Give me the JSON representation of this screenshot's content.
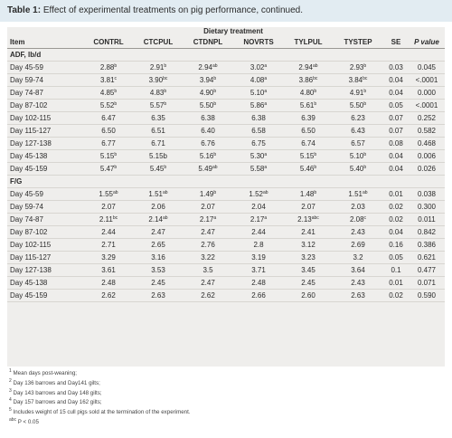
{
  "title": {
    "bold": "Table 1:",
    "rest": " Effect of experimental treatments on pig performance, continued."
  },
  "header": {
    "group": "Dietary treatment",
    "item": "Item",
    "columns": [
      "CONTRL",
      "CTCPUL",
      "CTDNPL",
      "NOVRTS",
      "TYLPUL",
      "TYSTEP",
      "SE",
      "P value"
    ]
  },
  "sections": [
    {
      "label": "ADF, lb/d",
      "rows": [
        {
          "label": "Day 45-59",
          "cells": [
            [
              "2.88",
              "b"
            ],
            [
              "2.91",
              "b"
            ],
            [
              "2.94",
              "ab"
            ],
            [
              "3.02",
              "a"
            ],
            [
              "2.94",
              "ab"
            ],
            [
              "2.93",
              "b"
            ],
            [
              "0.03",
              ""
            ],
            [
              "0.045",
              ""
            ]
          ]
        },
        {
          "label": "Day 59-74",
          "cells": [
            [
              "3.81",
              "c"
            ],
            [
              "3.90",
              "bc"
            ],
            [
              "3.94",
              "b"
            ],
            [
              "4.08",
              "a"
            ],
            [
              "3.86",
              "bc"
            ],
            [
              "3.84",
              "bc"
            ],
            [
              "0.04",
              ""
            ],
            [
              "<.0001",
              ""
            ]
          ]
        },
        {
          "label": "Day 74-87",
          "cells": [
            [
              "4.85",
              "b"
            ],
            [
              "4.83",
              "b"
            ],
            [
              "4.90",
              "b"
            ],
            [
              "5.10",
              "a"
            ],
            [
              "4.80",
              "b"
            ],
            [
              "4.91",
              "b"
            ],
            [
              "0.04",
              ""
            ],
            [
              "0.000",
              ""
            ]
          ]
        },
        {
          "label": "Day 87-102",
          "cells": [
            [
              "5.52",
              "b"
            ],
            [
              "5.57",
              "b"
            ],
            [
              "5.50",
              "b"
            ],
            [
              "5.86",
              "a"
            ],
            [
              "5.61",
              "b"
            ],
            [
              "5.50",
              "b"
            ],
            [
              "0.05",
              ""
            ],
            [
              "<.0001",
              ""
            ]
          ]
        },
        {
          "label": "Day 102-115",
          "cells": [
            [
              "6.47",
              ""
            ],
            [
              "6.35",
              ""
            ],
            [
              "6.38",
              ""
            ],
            [
              "6.38",
              ""
            ],
            [
              "6.39",
              ""
            ],
            [
              "6.23",
              ""
            ],
            [
              "0.07",
              ""
            ],
            [
              "0.252",
              ""
            ]
          ]
        },
        {
          "label": "Day 115-127",
          "cells": [
            [
              "6.50",
              ""
            ],
            [
              "6.51",
              ""
            ],
            [
              "6.40",
              ""
            ],
            [
              "6.58",
              ""
            ],
            [
              "6.50",
              ""
            ],
            [
              "6.43",
              ""
            ],
            [
              "0.07",
              ""
            ],
            [
              "0.582",
              ""
            ]
          ]
        },
        {
          "label": "Day 127-138",
          "cells": [
            [
              "6.77",
              ""
            ],
            [
              "6.71",
              ""
            ],
            [
              "6.76",
              ""
            ],
            [
              "6.75",
              ""
            ],
            [
              "6.74",
              ""
            ],
            [
              "6.57",
              ""
            ],
            [
              "0.08",
              ""
            ],
            [
              "0.468",
              ""
            ]
          ]
        },
        {
          "label": "Day 45-138",
          "cells": [
            [
              "5.15",
              "b"
            ],
            [
              "5.15b",
              ""
            ],
            [
              "5.16",
              "b"
            ],
            [
              "5.30",
              "a"
            ],
            [
              "5.15",
              "b"
            ],
            [
              "5.10",
              "b"
            ],
            [
              "0.04",
              ""
            ],
            [
              "0.006",
              ""
            ]
          ]
        },
        {
          "label": "Day 45-159",
          "cells": [
            [
              "5.47",
              "b"
            ],
            [
              "5.45",
              "b"
            ],
            [
              "5.49",
              "ab"
            ],
            [
              "5.58",
              "a"
            ],
            [
              "5.46",
              "b"
            ],
            [
              "5.40",
              "b"
            ],
            [
              "0.04",
              ""
            ],
            [
              "0.026",
              ""
            ]
          ]
        }
      ]
    },
    {
      "label": "F/G",
      "rows": [
        {
          "label": "Day 45-59",
          "cells": [
            [
              "1.55",
              "ab"
            ],
            [
              "1.51",
              "ab"
            ],
            [
              "1.49",
              "b"
            ],
            [
              "1.52",
              "ab"
            ],
            [
              "1.48",
              "b"
            ],
            [
              "1.51",
              "ab"
            ],
            [
              "0.01",
              ""
            ],
            [
              "0.038",
              ""
            ]
          ]
        },
        {
          "label": "Day 59-74",
          "cells": [
            [
              "2.07",
              ""
            ],
            [
              "2.06",
              ""
            ],
            [
              "2.07",
              ""
            ],
            [
              "2.04",
              ""
            ],
            [
              "2.07",
              ""
            ],
            [
              "2.03",
              ""
            ],
            [
              "0.02",
              ""
            ],
            [
              "0.300",
              ""
            ]
          ]
        },
        {
          "label": "Day 74-87",
          "cells": [
            [
              "2.11",
              "bc"
            ],
            [
              "2.14",
              "ab"
            ],
            [
              "2.17",
              "a"
            ],
            [
              "2.17",
              "a"
            ],
            [
              "2.13",
              "abc"
            ],
            [
              "2.08",
              "c"
            ],
            [
              "0.02",
              ""
            ],
            [
              "0.011",
              ""
            ]
          ]
        },
        {
          "label": "Day 87-102",
          "cells": [
            [
              "2.44",
              ""
            ],
            [
              "2.47",
              ""
            ],
            [
              "2.47",
              ""
            ],
            [
              "2.44",
              ""
            ],
            [
              "2.41",
              ""
            ],
            [
              "2.43",
              ""
            ],
            [
              "0.04",
              ""
            ],
            [
              "0.842",
              ""
            ]
          ]
        },
        {
          "label": "Day 102-115",
          "cells": [
            [
              "2.71",
              ""
            ],
            [
              "2.65",
              ""
            ],
            [
              "2.76",
              ""
            ],
            [
              "2.8",
              ""
            ],
            [
              "3.12",
              ""
            ],
            [
              "2.69",
              ""
            ],
            [
              "0.16",
              ""
            ],
            [
              "0.386",
              ""
            ]
          ]
        },
        {
          "label": "Day 115-127",
          "cells": [
            [
              "3.29",
              ""
            ],
            [
              "3.16",
              ""
            ],
            [
              "3.22",
              ""
            ],
            [
              "3.19",
              ""
            ],
            [
              "3.23",
              ""
            ],
            [
              "3.2",
              ""
            ],
            [
              "0.05",
              ""
            ],
            [
              "0.621",
              ""
            ]
          ]
        },
        {
          "label": "Day 127-138",
          "cells": [
            [
              "3.61",
              ""
            ],
            [
              "3.53",
              ""
            ],
            [
              "3.5",
              ""
            ],
            [
              "3.71",
              ""
            ],
            [
              "3.45",
              ""
            ],
            [
              "3.64",
              ""
            ],
            [
              "0.1",
              ""
            ],
            [
              "0.477",
              ""
            ]
          ]
        },
        {
          "label": "Day 45-138",
          "cells": [
            [
              "2.48",
              ""
            ],
            [
              "2.45",
              ""
            ],
            [
              "2.47",
              ""
            ],
            [
              "2.48",
              ""
            ],
            [
              "2.45",
              ""
            ],
            [
              "2.43",
              ""
            ],
            [
              "0.01",
              ""
            ],
            [
              "0.071",
              ""
            ]
          ]
        },
        {
          "label": "Day 45-159",
          "cells": [
            [
              "2.62",
              ""
            ],
            [
              "2.63",
              ""
            ],
            [
              "2.62",
              ""
            ],
            [
              "2.66",
              ""
            ],
            [
              "2.60",
              ""
            ],
            [
              "2.63",
              ""
            ],
            [
              "0.02",
              ""
            ],
            [
              "0.590",
              ""
            ]
          ]
        }
      ]
    }
  ],
  "footnotes": [
    {
      "mark": "1",
      "text": "Mean days post-weaning;"
    },
    {
      "mark": "2",
      "text": "Day 136 barrows and Day141 gilts;"
    },
    {
      "mark": "3",
      "text": "Day 143 barrows and Day 148 gilts;"
    },
    {
      "mark": "4",
      "text": "Day 157 barrows and Day 162 gilts;"
    },
    {
      "mark": "5",
      "text": "Includes weight of 15 cull pigs sold at the termination of the experiment."
    },
    {
      "mark": "abc",
      "text": "P < 0.05"
    }
  ],
  "colors": {
    "title_bg": "#e2ecf2",
    "table_bg": "#efeeec",
    "rule": "#d8d6d1",
    "text": "#2b2b2b"
  }
}
